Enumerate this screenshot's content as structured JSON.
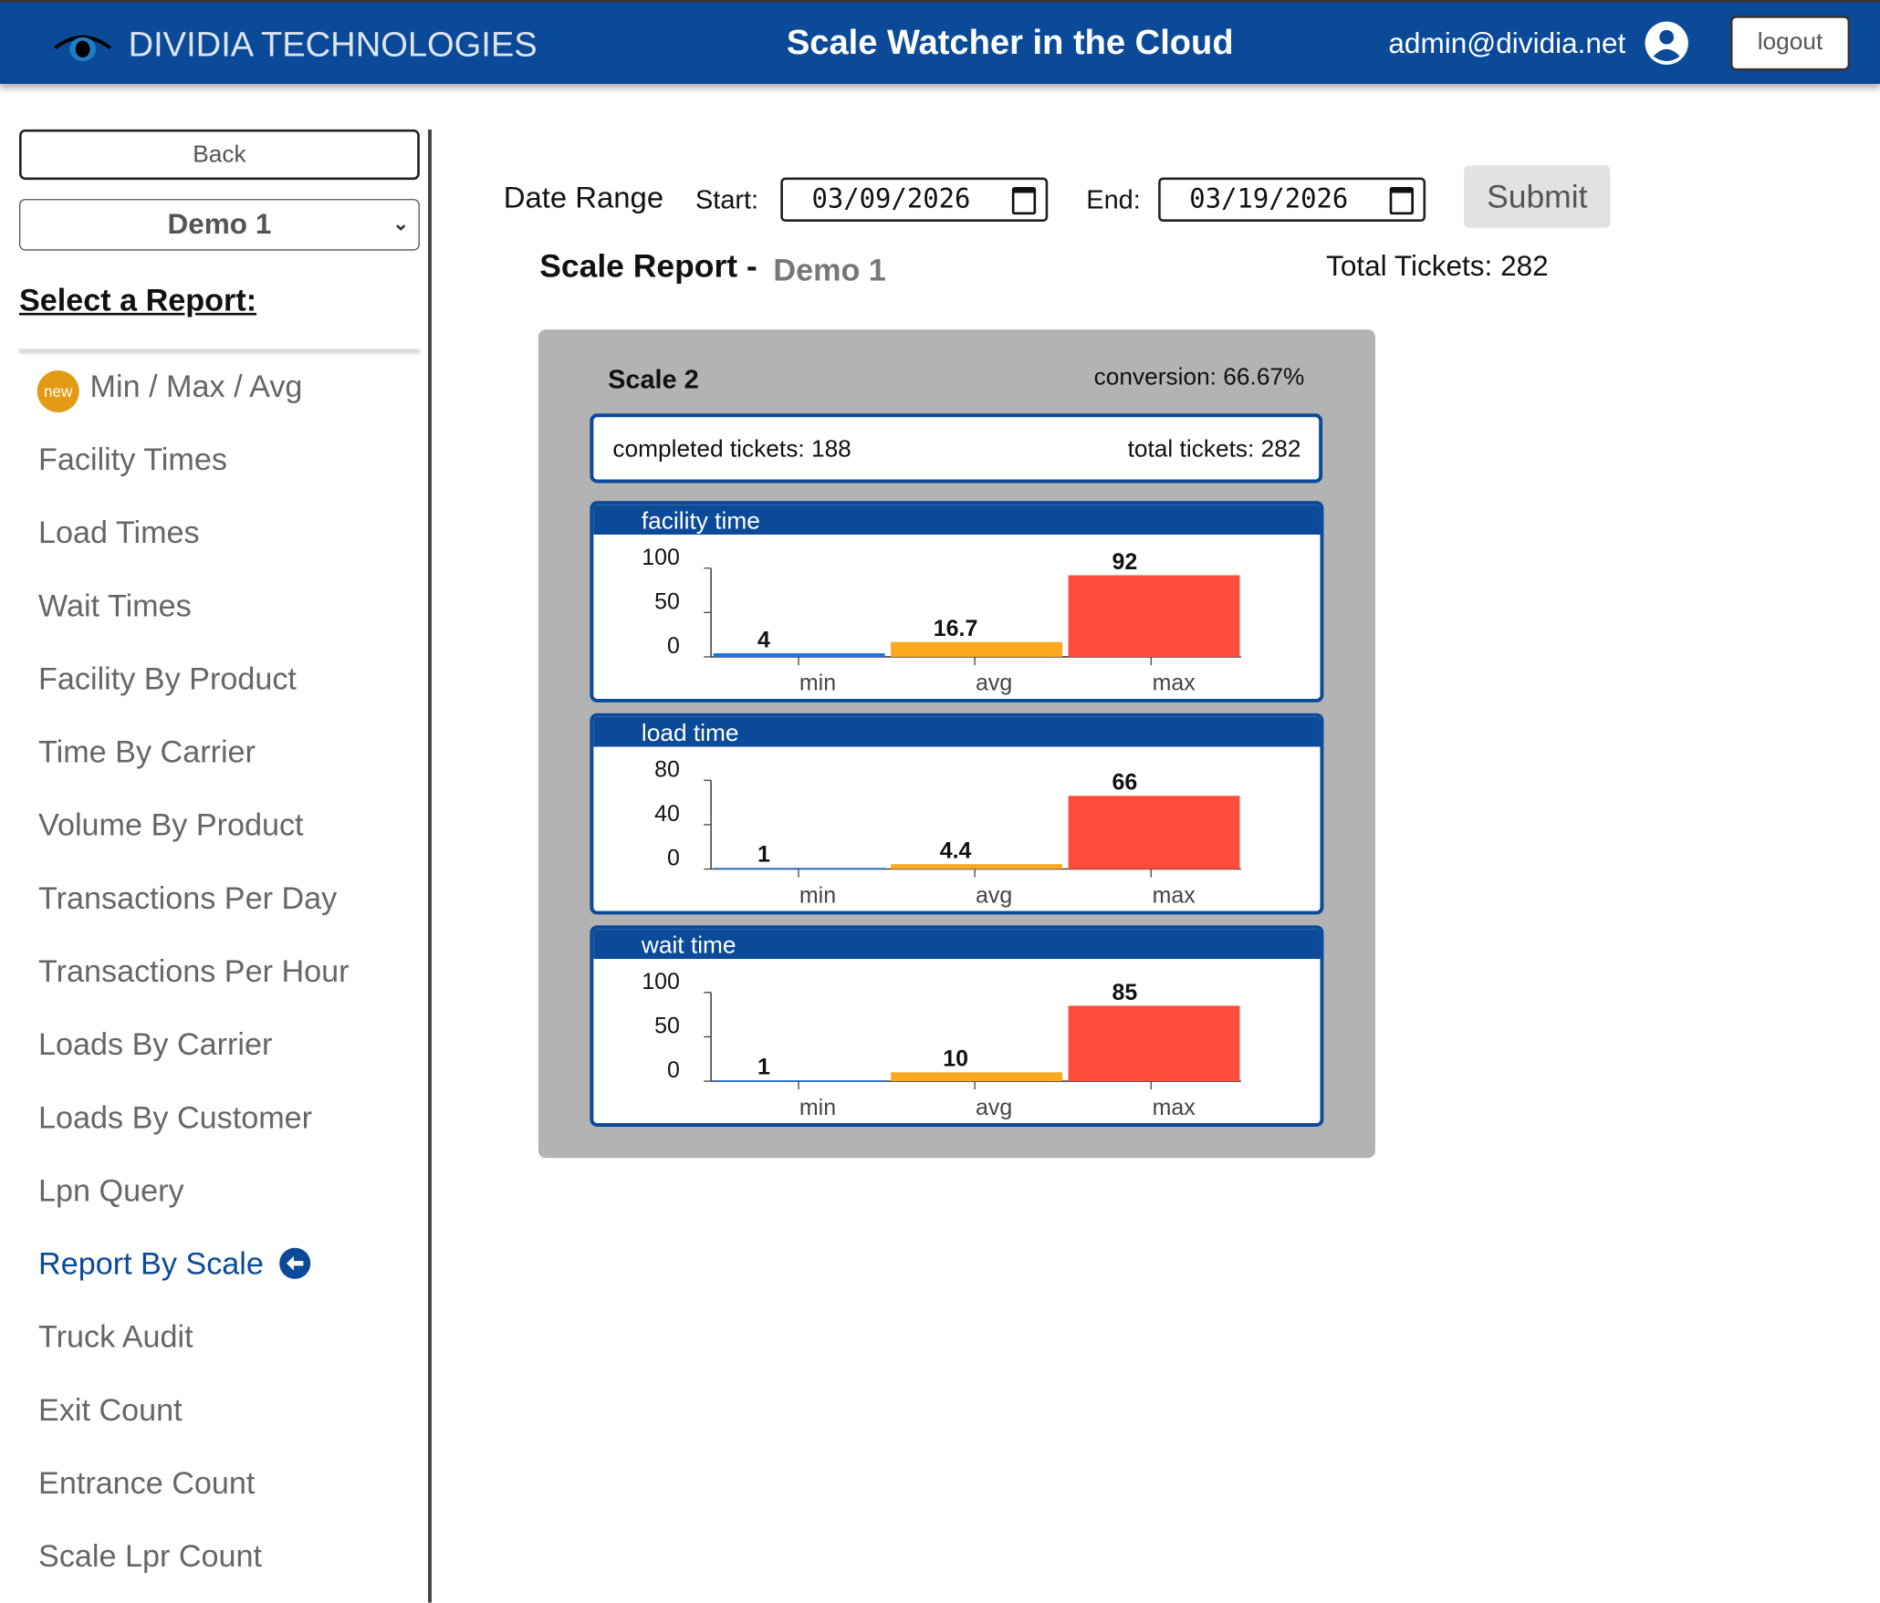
{
  "header": {
    "brand": "DIVIDIA TECHNOLOGIES",
    "title": "Scale Watcher in the Cloud",
    "user": "admin@dividia.net",
    "logout": "logout"
  },
  "sidebar": {
    "back": "Back",
    "site_select": "Demo 1",
    "heading": "Select a Report:",
    "new_badge": "new",
    "items": [
      "Min / Max / Avg",
      "Facility Times",
      "Load Times",
      "Wait Times",
      "Facility By Product",
      "Time By Carrier",
      "Volume By Product",
      "Transactions Per Day",
      "Transactions Per Hour",
      "Loads By Carrier",
      "Loads By Customer",
      "Lpn Query",
      "Report By Scale",
      "Truck Audit",
      "Exit Count",
      "Entrance Count",
      "Scale Lpr Count"
    ],
    "active_index": 12
  },
  "filters": {
    "label": "Date Range",
    "start_label": "Start:",
    "start": "03/09/2026",
    "end_label": "End:",
    "end": "03/19/2026",
    "submit": "Submit"
  },
  "report": {
    "title": "Scale Report -",
    "site": "Demo 1",
    "total": "Total Tickets: 282"
  },
  "scale": {
    "name": "Scale 2",
    "conversion": "conversion: 66.67%",
    "completed": "completed tickets: 188",
    "total": "total tickets: 282"
  },
  "colors": {
    "primary": "#0b4a99",
    "min": "#1a73e8",
    "avg": "#fbaa1f",
    "max": "#ff4b3a"
  },
  "chart_data": [
    {
      "type": "bar",
      "title": "facility time",
      "categories": [
        "min",
        "avg",
        "max"
      ],
      "values": [
        4,
        16.7,
        92
      ],
      "labels": [
        "4",
        "16.7",
        "92"
      ],
      "yticks": [
        "0",
        "50",
        "100"
      ],
      "ylim": [
        0,
        100
      ]
    },
    {
      "type": "bar",
      "title": "load time",
      "categories": [
        "min",
        "avg",
        "max"
      ],
      "values": [
        1,
        4.4,
        66
      ],
      "labels": [
        "1",
        "4.4",
        "66"
      ],
      "yticks": [
        "0",
        "40",
        "80"
      ],
      "ylim": [
        0,
        80
      ]
    },
    {
      "type": "bar",
      "title": "wait time",
      "categories": [
        "min",
        "avg",
        "max"
      ],
      "values": [
        1,
        10,
        85
      ],
      "labels": [
        "1",
        "10",
        "85"
      ],
      "yticks": [
        "0",
        "50",
        "100"
      ],
      "ylim": [
        0,
        100
      ]
    }
  ]
}
